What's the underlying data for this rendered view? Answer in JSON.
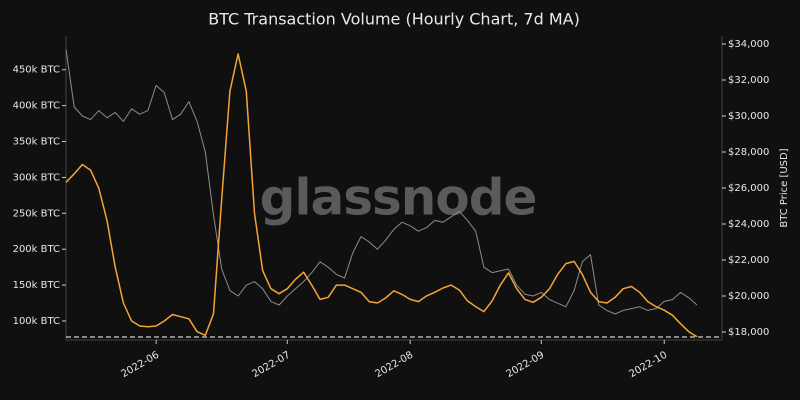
{
  "chart_data": {
    "type": "line",
    "title": "BTC Transaction Volume (Hourly Chart, 7d MA)",
    "watermark": "glassnode",
    "y2label": "BTC Price [USD]",
    "categories": [
      null,
      null,
      null,
      null,
      null,
      null,
      null,
      null,
      null,
      null,
      null,
      "2022-06",
      null,
      null,
      null,
      null,
      null,
      null,
      null,
      null,
      null,
      null,
      null,
      null,
      null,
      null,
      null,
      "2022-07",
      null,
      null,
      null,
      null,
      null,
      null,
      null,
      null,
      null,
      null,
      null,
      null,
      null,
      null,
      "2022-08",
      null,
      null,
      null,
      null,
      null,
      null,
      null,
      null,
      null,
      null,
      null,
      null,
      null,
      null,
      null,
      "2022-09",
      null,
      null,
      null,
      null,
      null,
      null,
      null,
      null,
      null,
      null,
      null,
      null,
      null,
      null,
      "2022-10",
      null,
      null,
      null,
      null
    ],
    "series": [
      {
        "color": "#f7a335",
        "values": [
          293000,
          305000,
          318000,
          310000,
          285000,
          240000,
          175000,
          125000,
          100000,
          93000,
          92000,
          93000,
          100000,
          109000,
          106000,
          103000,
          85000,
          80000,
          110000,
          270000,
          420000,
          472000,
          420000,
          250000,
          170000,
          145000,
          138000,
          145000,
          158000,
          168000,
          150000,
          130000,
          133000,
          150000,
          150000,
          145000,
          140000,
          127000,
          125000,
          132000,
          142000,
          137000,
          130000,
          127000,
          135000,
          140000,
          146000,
          150000,
          143000,
          128000,
          120000,
          113000,
          128000,
          150000,
          167000,
          145000,
          130000,
          126000,
          133000,
          145000,
          165000,
          180000,
          183000,
          165000,
          140000,
          127000,
          125000,
          133000,
          145000,
          148000,
          140000,
          127000,
          120000,
          115000,
          108000,
          96000,
          85000,
          78000
        ]
      },
      {
        "color": "#8c8c8c",
        "axis": "y2",
        "values": [
          33700,
          30500,
          30000,
          29800,
          30300,
          29900,
          30200,
          29700,
          30400,
          30100,
          30300,
          31700,
          31300,
          29800,
          30100,
          30800,
          29700,
          28000,
          24500,
          21500,
          20300,
          20000,
          20600,
          20800,
          20400,
          19700,
          19500,
          20000,
          20400,
          20800,
          21300,
          21900,
          21600,
          21200,
          21000,
          22400,
          23300,
          23000,
          22600,
          23100,
          23700,
          24100,
          23900,
          23600,
          23800,
          24200,
          24100,
          24400,
          24700,
          24200,
          23600,
          21600,
          21300,
          21400,
          21500,
          20600,
          20100,
          20000,
          20200,
          19800,
          19600,
          19400,
          20300,
          21900,
          22300,
          19500,
          19200,
          19000,
          19200,
          19300,
          19400,
          19200,
          19300,
          19700,
          19800,
          20200,
          19900,
          19500
        ]
      }
    ],
    "ylim": [
      73500,
      497000
    ],
    "yticks": [
      {
        "value": 100000,
        "label": "100k BTC"
      },
      {
        "value": 150000,
        "label": "150k BTC"
      },
      {
        "value": 200000,
        "label": "200k BTC"
      },
      {
        "value": 250000,
        "label": "250k BTC"
      },
      {
        "value": 300000,
        "label": "300k BTC"
      },
      {
        "value": 350000,
        "label": "350k BTC"
      },
      {
        "value": 400000,
        "label": "400k BTC"
      },
      {
        "value": 450000,
        "label": "450k BTC"
      }
    ],
    "y2lim": [
      17556,
      34444
    ],
    "y2ticks": [
      {
        "value": 18000,
        "label": "$18,000"
      },
      {
        "value": 20000,
        "label": "$20,000"
      },
      {
        "value": 22000,
        "label": "$22,000"
      },
      {
        "value": 24000,
        "label": "$24,000"
      },
      {
        "value": 26000,
        "label": "$26,000"
      },
      {
        "value": 28000,
        "label": "$28,000"
      },
      {
        "value": 30000,
        "label": "$30,000"
      },
      {
        "value": 32000,
        "label": "$32,000"
      },
      {
        "value": 34000,
        "label": "$34,000"
      }
    ],
    "threshold": 77700,
    "grid": false
  }
}
